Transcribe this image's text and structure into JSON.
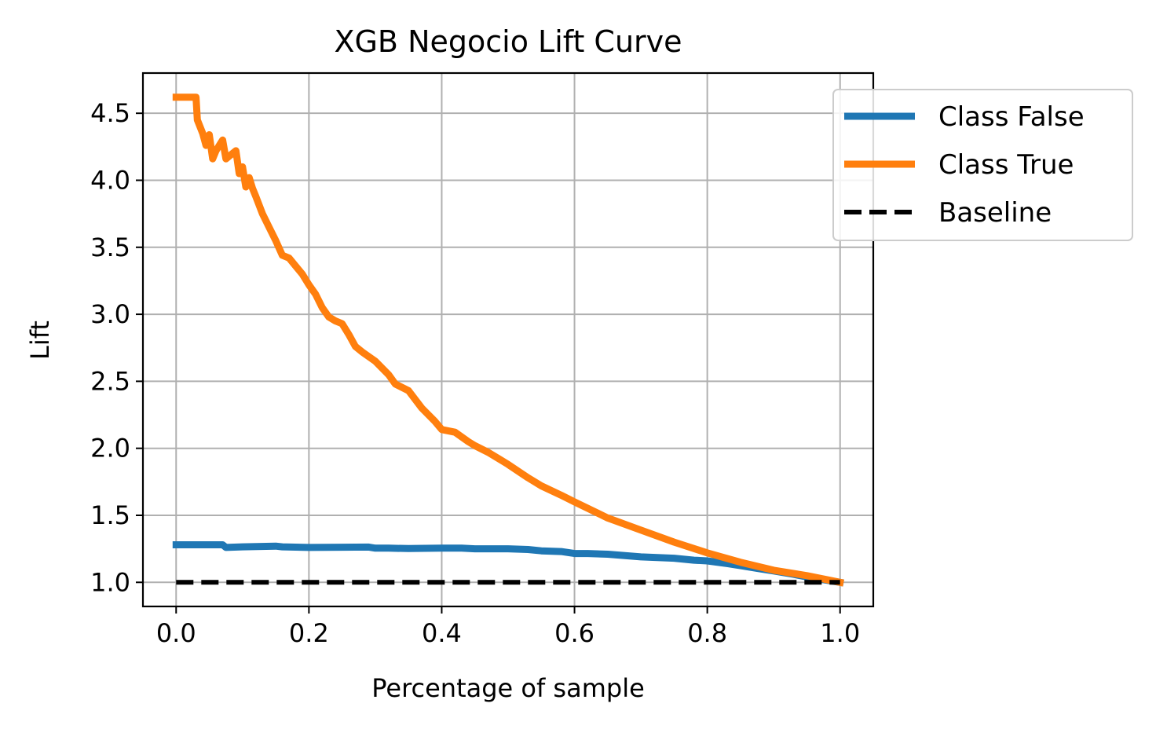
{
  "chart_data": {
    "type": "line",
    "title": "XGB Negocio Lift Curve",
    "xlabel": "Percentage of sample",
    "ylabel": "Lift",
    "xlim": [
      -0.05,
      1.05
    ],
    "ylim": [
      0.82,
      4.8
    ],
    "xticks": [
      0.0,
      0.2,
      0.4,
      0.6,
      0.8,
      1.0
    ],
    "xtick_labels": [
      "0.0",
      "0.2",
      "0.4",
      "0.6",
      "0.8",
      "1.0"
    ],
    "yticks": [
      1.0,
      1.5,
      2.0,
      2.5,
      3.0,
      3.5,
      4.0,
      4.5
    ],
    "ytick_labels": [
      "1.0",
      "1.5",
      "2.0",
      "2.5",
      "3.0",
      "3.5",
      "4.0",
      "4.5"
    ],
    "grid": true,
    "legend_position": "upper-right-outside",
    "series": [
      {
        "name": "Class False",
        "color": "#1f77b4",
        "style": "solid",
        "x": [
          0.0,
          0.03,
          0.07,
          0.075,
          0.1,
          0.15,
          0.16,
          0.2,
          0.25,
          0.29,
          0.3,
          0.32,
          0.35,
          0.4,
          0.43,
          0.45,
          0.5,
          0.53,
          0.55,
          0.58,
          0.6,
          0.62,
          0.65,
          0.7,
          0.75,
          0.78,
          0.8,
          0.83,
          0.85,
          0.88,
          0.9,
          0.93,
          0.95,
          1.0
        ],
        "y": [
          1.28,
          1.28,
          1.28,
          1.26,
          1.265,
          1.27,
          1.265,
          1.26,
          1.262,
          1.263,
          1.255,
          1.255,
          1.252,
          1.255,
          1.255,
          1.25,
          1.25,
          1.245,
          1.235,
          1.23,
          1.215,
          1.215,
          1.21,
          1.19,
          1.18,
          1.165,
          1.16,
          1.14,
          1.125,
          1.1,
          1.085,
          1.06,
          1.04,
          1.0
        ]
      },
      {
        "name": "Class True",
        "color": "#ff7f0e",
        "style": "solid",
        "x": [
          0.0,
          0.03,
          0.032,
          0.04,
          0.045,
          0.05,
          0.055,
          0.06,
          0.07,
          0.075,
          0.08,
          0.09,
          0.095,
          0.1,
          0.105,
          0.11,
          0.115,
          0.12,
          0.13,
          0.14,
          0.15,
          0.16,
          0.17,
          0.18,
          0.19,
          0.2,
          0.21,
          0.22,
          0.23,
          0.24,
          0.25,
          0.26,
          0.27,
          0.28,
          0.3,
          0.32,
          0.33,
          0.35,
          0.37,
          0.39,
          0.4,
          0.42,
          0.44,
          0.45,
          0.47,
          0.5,
          0.53,
          0.55,
          0.58,
          0.6,
          0.65,
          0.7,
          0.75,
          0.8,
          0.85,
          0.9,
          0.95,
          1.0
        ],
        "y": [
          4.62,
          4.62,
          4.45,
          4.35,
          4.26,
          4.34,
          4.16,
          4.22,
          4.3,
          4.16,
          4.18,
          4.22,
          4.05,
          4.1,
          3.95,
          4.02,
          3.94,
          3.88,
          3.75,
          3.65,
          3.55,
          3.44,
          3.42,
          3.36,
          3.3,
          3.22,
          3.15,
          3.05,
          2.98,
          2.95,
          2.93,
          2.85,
          2.76,
          2.72,
          2.65,
          2.55,
          2.48,
          2.43,
          2.3,
          2.2,
          2.14,
          2.12,
          2.05,
          2.02,
          1.97,
          1.88,
          1.78,
          1.72,
          1.65,
          1.6,
          1.48,
          1.39,
          1.3,
          1.22,
          1.15,
          1.09,
          1.05,
          1.0
        ]
      },
      {
        "name": "Baseline",
        "color": "#000000",
        "style": "dashed",
        "x": [
          0.0,
          1.0
        ],
        "y": [
          1.0,
          1.0
        ]
      }
    ]
  }
}
